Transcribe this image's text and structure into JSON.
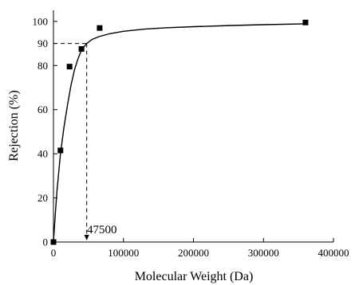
{
  "chart_data": {
    "type": "scatter",
    "xlabel": "Molecular Weight (Da)",
    "ylabel": "Rejection (%)",
    "xlim": [
      0,
      400000
    ],
    "ylim": [
      0,
      105
    ],
    "x_ticks": [
      0,
      100000,
      200000,
      300000,
      400000
    ],
    "x_tick_labels": [
      "0",
      "100000",
      "200000",
      "300000",
      "400000"
    ],
    "y_ticks": [
      0,
      20,
      40,
      60,
      80,
      90,
      100
    ],
    "y_tick_labels": [
      "0",
      "20",
      "40",
      "60",
      "80",
      "90",
      "100"
    ],
    "grid": false,
    "legend": "none",
    "series": [
      {
        "marker": "square",
        "color": "#000000",
        "x": [
          0,
          10000,
          23000,
          40000,
          66000,
          360000
        ],
        "y": [
          0,
          41.5,
          79.5,
          87.5,
          97,
          99.5
        ]
      }
    ],
    "fit_curve": {
      "style": "solid",
      "color": "#000000",
      "x": [
        0,
        2500,
        5000,
        10000,
        15000,
        20000,
        25000,
        30000,
        35000,
        40000,
        47500,
        55000,
        65000,
        80000,
        100000,
        130000,
        160000,
        200000,
        250000,
        300000,
        360000
      ],
      "y": [
        0,
        12,
        23,
        40,
        52,
        62,
        71,
        78,
        83,
        87,
        90,
        91.8,
        93.1,
        94.4,
        95.5,
        96.5,
        97.1,
        97.6,
        98.1,
        98.5,
        98.9
      ]
    },
    "cutoff": {
      "x": 47500,
      "y": 90,
      "label": "47500"
    }
  }
}
